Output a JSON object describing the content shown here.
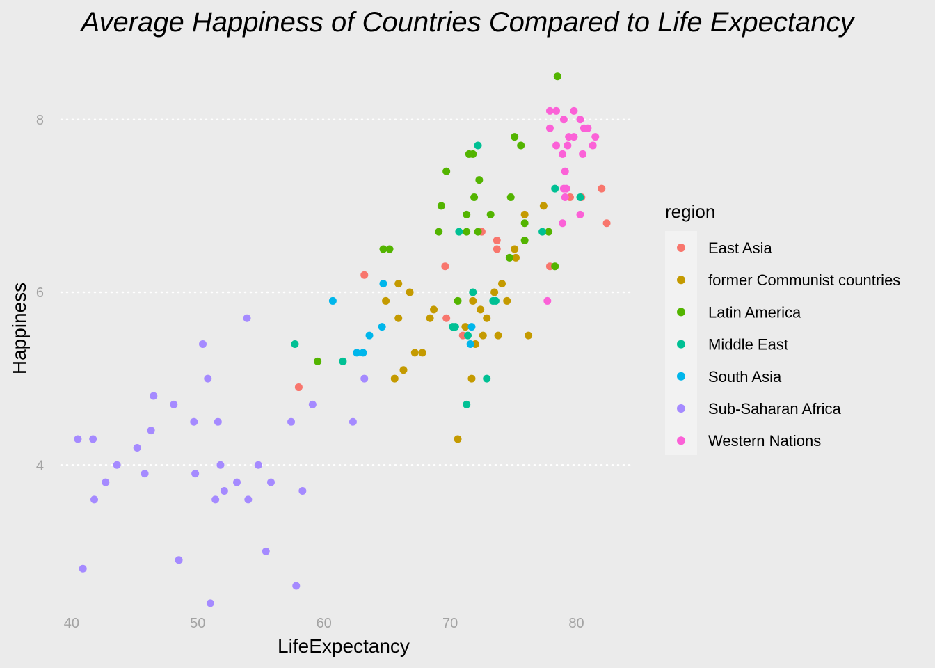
{
  "chart_data": {
    "type": "scatter",
    "title": "Average Happiness of Countries Compared to Life Expectancy",
    "xlabel": "LifeExpectancy",
    "ylabel": "Happiness",
    "xlim": [
      38.3,
      84.6
    ],
    "ylim": [
      2.27,
      8.82
    ],
    "x_ticks": [
      40,
      50,
      60,
      70,
      80
    ],
    "y_ticks": [
      4,
      6,
      8
    ],
    "grid": "horizontal dotted",
    "legend": {
      "title": "region",
      "placement": "right"
    },
    "series": [
      {
        "name": "East Asia",
        "color": "#F8766D",
        "points": [
          [
            58.0,
            4.9
          ],
          [
            63.2,
            6.2
          ],
          [
            69.6,
            6.3
          ],
          [
            69.7,
            5.7
          ],
          [
            71.0,
            5.5
          ],
          [
            72.5,
            6.7
          ],
          [
            73.7,
            6.6
          ],
          [
            73.7,
            6.5
          ],
          [
            77.9,
            6.3
          ],
          [
            79.5,
            7.1
          ],
          [
            80.4,
            7.1
          ],
          [
            82.0,
            7.2
          ],
          [
            82.4,
            6.8
          ]
        ]
      },
      {
        "name": "former Communist countries",
        "color": "#C49A00",
        "points": [
          [
            64.9,
            5.9
          ],
          [
            65.6,
            5.0
          ],
          [
            65.9,
            5.7
          ],
          [
            65.9,
            6.1
          ],
          [
            66.3,
            5.1
          ],
          [
            66.8,
            6.0
          ],
          [
            67.2,
            5.3
          ],
          [
            67.8,
            5.3
          ],
          [
            68.4,
            5.7
          ],
          [
            68.7,
            5.8
          ],
          [
            70.6,
            4.3
          ],
          [
            71.2,
            5.6
          ],
          [
            71.7,
            5.0
          ],
          [
            71.8,
            5.9
          ],
          [
            72.0,
            5.4
          ],
          [
            72.4,
            5.8
          ],
          [
            72.6,
            5.5
          ],
          [
            72.9,
            5.7
          ],
          [
            73.5,
            6.0
          ],
          [
            73.8,
            5.5
          ],
          [
            74.1,
            6.1
          ],
          [
            74.5,
            5.9
          ],
          [
            75.1,
            6.5
          ],
          [
            75.2,
            6.4
          ],
          [
            75.9,
            6.9
          ],
          [
            76.2,
            5.5
          ],
          [
            77.4,
            7.0
          ]
        ]
      },
      {
        "name": "Latin America",
        "color": "#53B400",
        "points": [
          [
            59.5,
            5.2
          ],
          [
            64.7,
            6.5
          ],
          [
            65.2,
            6.5
          ],
          [
            69.1,
            6.7
          ],
          [
            69.3,
            7.0
          ],
          [
            69.7,
            7.4
          ],
          [
            70.6,
            5.9
          ],
          [
            71.3,
            6.7
          ],
          [
            71.3,
            6.9
          ],
          [
            71.5,
            7.6
          ],
          [
            71.8,
            7.6
          ],
          [
            71.9,
            7.1
          ],
          [
            72.2,
            6.7
          ],
          [
            72.3,
            7.3
          ],
          [
            73.2,
            6.9
          ],
          [
            74.7,
            6.4
          ],
          [
            74.8,
            7.1
          ],
          [
            75.1,
            7.8
          ],
          [
            75.6,
            7.7
          ],
          [
            75.9,
            6.8
          ],
          [
            75.9,
            6.6
          ],
          [
            77.8,
            6.7
          ],
          [
            78.3,
            6.3
          ],
          [
            78.5,
            8.5
          ]
        ]
      },
      {
        "name": "Middle East",
        "color": "#00C094",
        "points": [
          [
            57.7,
            5.4
          ],
          [
            61.5,
            5.2
          ],
          [
            70.2,
            5.6
          ],
          [
            70.4,
            5.6
          ],
          [
            70.7,
            6.7
          ],
          [
            71.3,
            4.7
          ],
          [
            71.4,
            5.5
          ],
          [
            71.8,
            6.0
          ],
          [
            72.2,
            7.7
          ],
          [
            72.9,
            5.0
          ],
          [
            73.4,
            5.9
          ],
          [
            73.6,
            5.9
          ],
          [
            77.3,
            6.7
          ],
          [
            78.3,
            7.2
          ],
          [
            80.3,
            7.1
          ]
        ]
      },
      {
        "name": "South Asia",
        "color": "#00B6EB",
        "points": [
          [
            60.7,
            5.9
          ],
          [
            62.6,
            5.3
          ],
          [
            63.1,
            5.3
          ],
          [
            63.6,
            5.5
          ],
          [
            64.6,
            5.6
          ],
          [
            64.7,
            6.1
          ],
          [
            71.6,
            5.4
          ],
          [
            71.7,
            5.6
          ]
        ]
      },
      {
        "name": "Sub-Saharan Africa",
        "color": "#A58AFF",
        "points": [
          [
            40.5,
            4.3
          ],
          [
            40.9,
            2.8
          ],
          [
            41.7,
            4.3
          ],
          [
            41.8,
            3.6
          ],
          [
            42.7,
            3.8
          ],
          [
            43.6,
            4.0
          ],
          [
            45.2,
            4.2
          ],
          [
            45.8,
            3.9
          ],
          [
            46.3,
            4.4
          ],
          [
            46.5,
            4.8
          ],
          [
            48.1,
            4.7
          ],
          [
            48.5,
            2.9
          ],
          [
            49.7,
            4.5
          ],
          [
            49.8,
            3.9
          ],
          [
            50.4,
            5.4
          ],
          [
            50.8,
            5.0
          ],
          [
            51.0,
            2.4
          ],
          [
            51.4,
            3.6
          ],
          [
            51.6,
            4.5
          ],
          [
            51.8,
            4.0
          ],
          [
            52.1,
            3.7
          ],
          [
            53.1,
            3.8
          ],
          [
            53.9,
            5.7
          ],
          [
            54.0,
            3.6
          ],
          [
            54.8,
            4.0
          ],
          [
            55.4,
            3.0
          ],
          [
            55.8,
            3.8
          ],
          [
            57.4,
            4.5
          ],
          [
            57.8,
            2.6
          ],
          [
            58.3,
            3.7
          ],
          [
            59.1,
            4.7
          ],
          [
            62.3,
            4.5
          ],
          [
            63.2,
            5.0
          ]
        ]
      },
      {
        "name": "Western Nations",
        "color": "#FB61D7",
        "points": [
          [
            77.7,
            5.9
          ],
          [
            77.9,
            7.9
          ],
          [
            77.9,
            8.1
          ],
          [
            78.4,
            8.1
          ],
          [
            78.4,
            7.7
          ],
          [
            78.9,
            7.6
          ],
          [
            78.9,
            6.8
          ],
          [
            79.0,
            8.0
          ],
          [
            79.0,
            7.2
          ],
          [
            79.1,
            7.4
          ],
          [
            79.1,
            7.1
          ],
          [
            79.2,
            7.2
          ],
          [
            79.3,
            7.7
          ],
          [
            79.4,
            7.8
          ],
          [
            79.8,
            7.8
          ],
          [
            79.8,
            8.1
          ],
          [
            80.3,
            8.0
          ],
          [
            80.3,
            6.9
          ],
          [
            80.5,
            7.6
          ],
          [
            80.6,
            7.9
          ],
          [
            80.9,
            7.9
          ],
          [
            81.3,
            7.7
          ],
          [
            81.5,
            7.8
          ]
        ]
      }
    ]
  }
}
